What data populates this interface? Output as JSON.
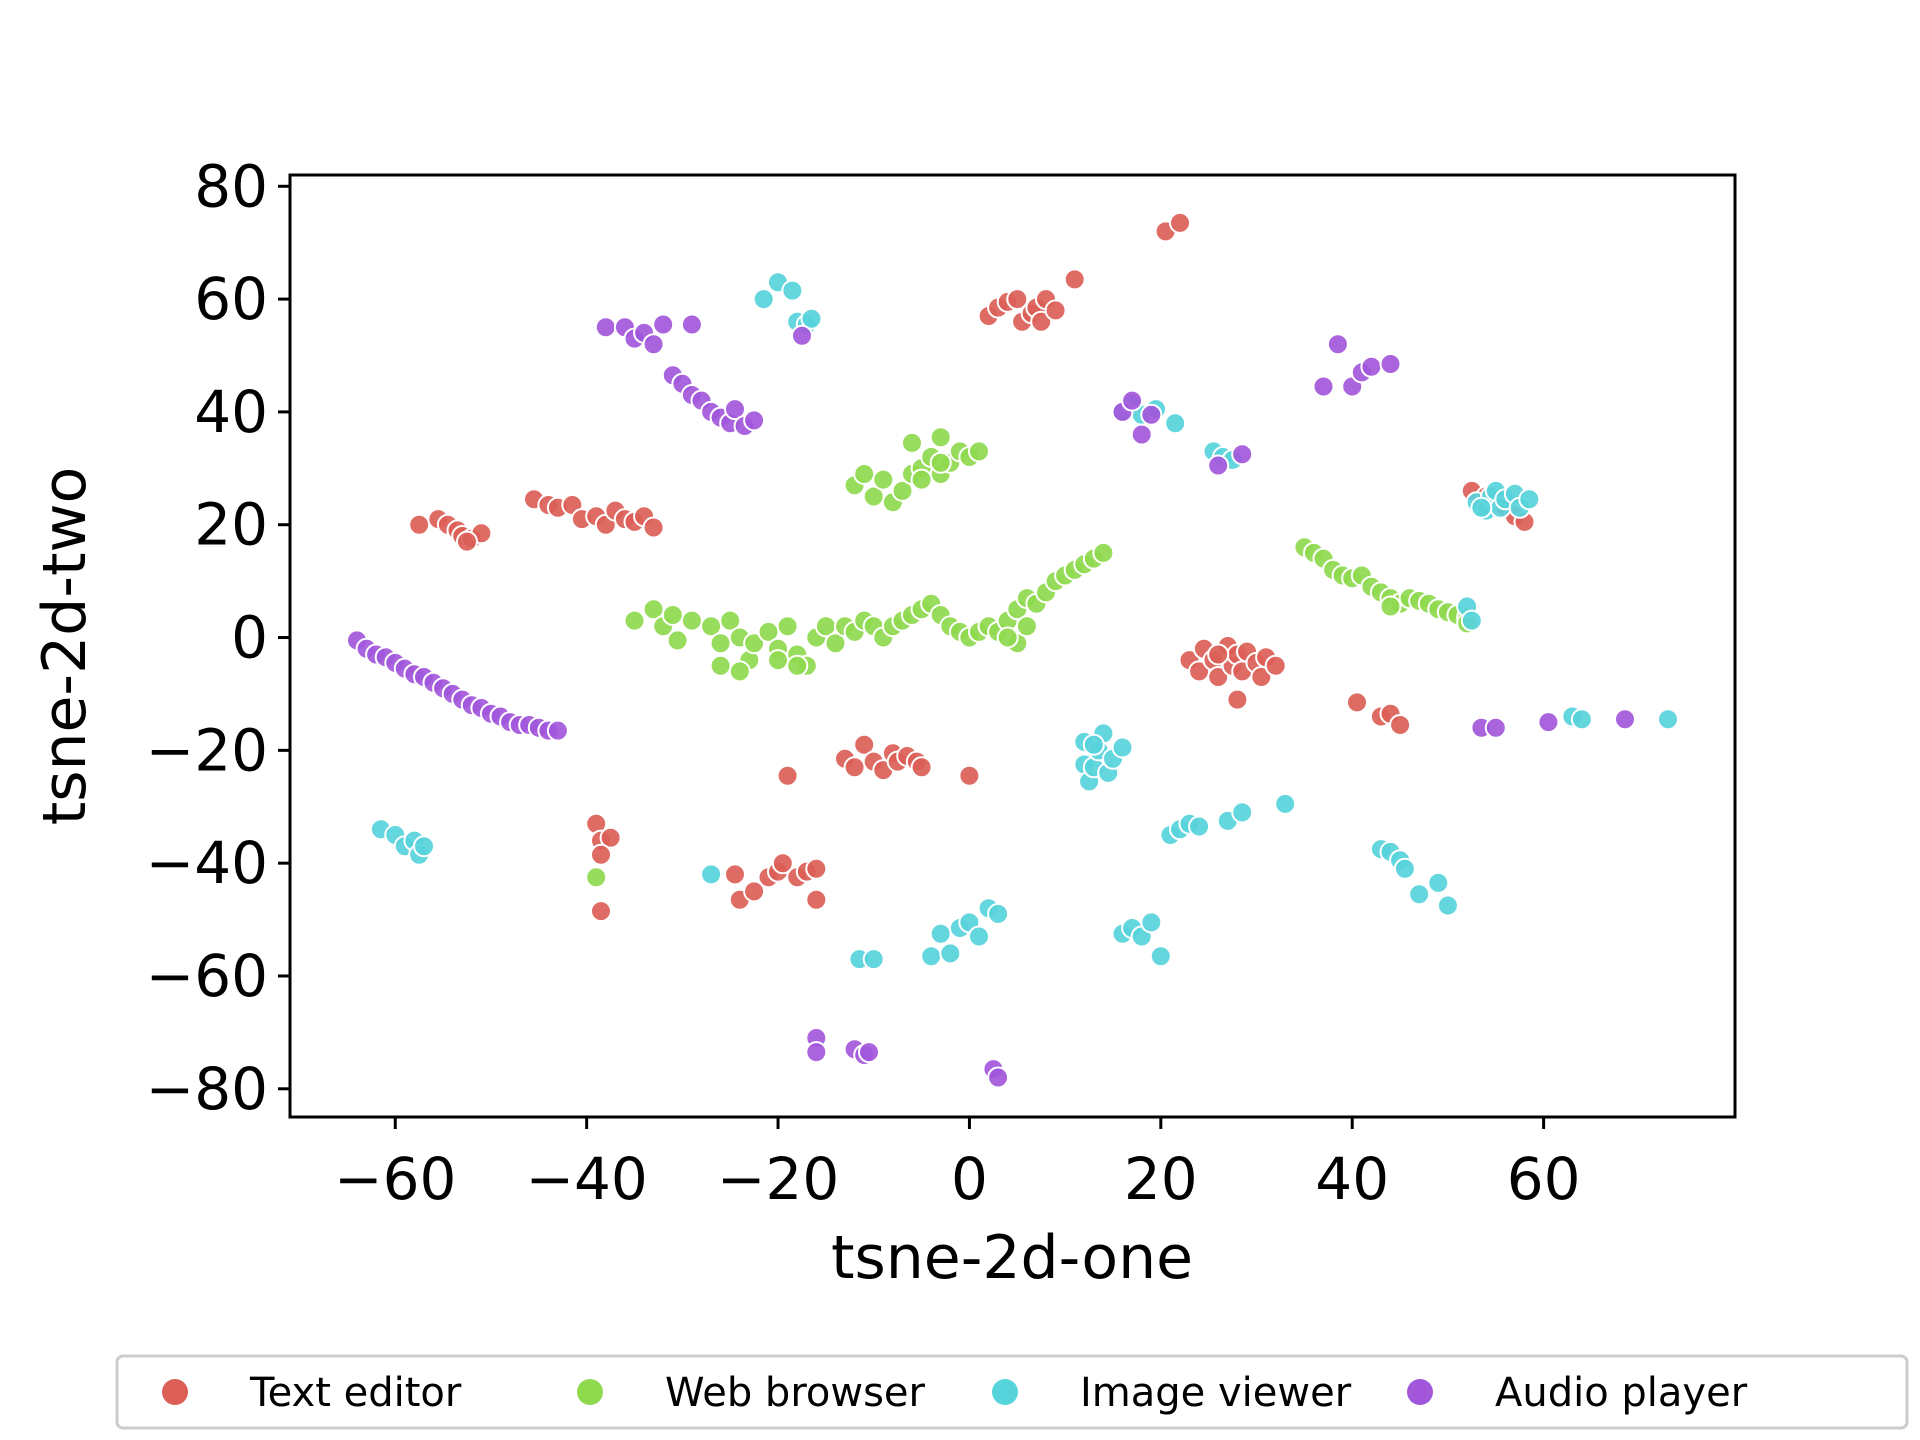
{
  "chart_data": {
    "type": "scatter",
    "title": "",
    "xlabel": "tsne-2d-one",
    "ylabel": "tsne-2d-two",
    "xlim": [
      -71,
      80
    ],
    "ylim": [
      -85,
      82
    ],
    "xticks": [
      -60,
      -40,
      -20,
      0,
      20,
      40,
      60
    ],
    "yticks": [
      80,
      60,
      40,
      20,
      0,
      -20,
      -40,
      -60,
      -80
    ],
    "xtick_labels": [
      "−60",
      "−40",
      "−20",
      "0",
      "20",
      "40",
      "60"
    ],
    "ytick_labels": [
      "80",
      "60",
      "40",
      "20",
      "0",
      "−20",
      "−40",
      "−60",
      "−80"
    ],
    "grid": false,
    "legend_position": "bottom",
    "series": [
      {
        "name": "Text editor",
        "color": "#db5f57",
        "points": [
          [
            -57.5,
            20
          ],
          [
            -55.5,
            21
          ],
          [
            -54.5,
            20
          ],
          [
            -53.5,
            19
          ],
          [
            -53,
            18
          ],
          [
            -52,
            17.5
          ],
          [
            -51,
            18.5
          ],
          [
            -52.5,
            17
          ],
          [
            -45.5,
            24.5
          ],
          [
            -44,
            23.5
          ],
          [
            -43,
            23
          ],
          [
            -41.5,
            23.5
          ],
          [
            -40.5,
            21
          ],
          [
            -39,
            21.5
          ],
          [
            -38,
            20
          ],
          [
            -37,
            22.5
          ],
          [
            -36,
            21
          ],
          [
            -35,
            20.5
          ],
          [
            -34,
            21.5
          ],
          [
            -33,
            19.5
          ],
          [
            -39,
            -33
          ],
          [
            -38.5,
            -36
          ],
          [
            -37.5,
            -35.5
          ],
          [
            -38.5,
            -38.5
          ],
          [
            -38.5,
            -48.5
          ],
          [
            -24.5,
            -42
          ],
          [
            -24,
            -46.5
          ],
          [
            -22.5,
            -45
          ],
          [
            -21,
            -42.5
          ],
          [
            -20,
            -41.5
          ],
          [
            -19.5,
            -40
          ],
          [
            -18,
            -42.5
          ],
          [
            -17,
            -41.5
          ],
          [
            -16,
            -41
          ],
          [
            -16,
            -46.5
          ],
          [
            -19,
            -24.5
          ],
          [
            0,
            -24.5
          ],
          [
            -13,
            -21.5
          ],
          [
            -12,
            -23
          ],
          [
            -11,
            -19
          ],
          [
            -10,
            -22
          ],
          [
            -9,
            -23.5
          ],
          [
            -8,
            -20.5
          ],
          [
            -7.5,
            -22
          ],
          [
            -6.5,
            -21
          ],
          [
            -5.5,
            -22
          ],
          [
            -5,
            -23
          ],
          [
            2,
            57
          ],
          [
            3,
            58.5
          ],
          [
            4,
            59.5
          ],
          [
            5,
            60
          ],
          [
            5.5,
            56
          ],
          [
            6.5,
            57.5
          ],
          [
            7,
            58.5
          ],
          [
            7.5,
            56
          ],
          [
            8,
            60
          ],
          [
            9,
            58
          ],
          [
            11,
            63.5
          ],
          [
            20.5,
            72
          ],
          [
            22,
            73.5
          ],
          [
            23,
            -4
          ],
          [
            24,
            -6
          ],
          [
            24.5,
            -2
          ],
          [
            25.5,
            -4
          ],
          [
            26,
            -7
          ],
          [
            27,
            -1.5
          ],
          [
            27.5,
            -5
          ],
          [
            28,
            -3
          ],
          [
            28.5,
            -6
          ],
          [
            29,
            -2.5
          ],
          [
            30,
            -4.5
          ],
          [
            30.5,
            -7
          ],
          [
            31,
            -3.5
          ],
          [
            32,
            -5
          ],
          [
            28,
            -11
          ],
          [
            26,
            -3
          ],
          [
            40.5,
            -11.5
          ],
          [
            43,
            -14
          ],
          [
            44,
            -13.5
          ],
          [
            45,
            -15.5
          ],
          [
            52.5,
            26
          ],
          [
            54,
            25
          ],
          [
            56,
            23
          ],
          [
            57,
            21.5
          ],
          [
            58,
            20.5
          ]
        ]
      },
      {
        "name": "Web browser",
        "color": "#8fd94f",
        "points": [
          [
            -35,
            3
          ],
          [
            -33,
            5
          ],
          [
            -32,
            2
          ],
          [
            -31,
            4
          ],
          [
            -30.5,
            -0.5
          ],
          [
            -29,
            3
          ],
          [
            -27,
            2
          ],
          [
            -26,
            -1
          ],
          [
            -25,
            3
          ],
          [
            -24,
            0
          ],
          [
            -23,
            -4
          ],
          [
            -22.5,
            -1
          ],
          [
            -21,
            1
          ],
          [
            -20,
            -2
          ],
          [
            -19,
            2
          ],
          [
            -18,
            -3
          ],
          [
            -17,
            -5
          ],
          [
            -16,
            0
          ],
          [
            -15,
            2
          ],
          [
            -14,
            -1
          ],
          [
            -13,
            2
          ],
          [
            -12,
            1
          ],
          [
            -11,
            3
          ],
          [
            -10,
            2
          ],
          [
            -9,
            0
          ],
          [
            -8,
            2
          ],
          [
            -7,
            3
          ],
          [
            -6,
            4
          ],
          [
            -5,
            5
          ],
          [
            -4,
            6
          ],
          [
            -3,
            4
          ],
          [
            -2,
            2
          ],
          [
            -1,
            1
          ],
          [
            0,
            0
          ],
          [
            1,
            1
          ],
          [
            2,
            2
          ],
          [
            3,
            1
          ],
          [
            4,
            3
          ],
          [
            5,
            5
          ],
          [
            6,
            7
          ],
          [
            7,
            6
          ],
          [
            8,
            8
          ],
          [
            9,
            10
          ],
          [
            10,
            11
          ],
          [
            11,
            12
          ],
          [
            12,
            13
          ],
          [
            13,
            14
          ],
          [
            14,
            15
          ],
          [
            -24,
            -6
          ],
          [
            -26,
            -5
          ],
          [
            -20,
            -4
          ],
          [
            -18,
            -5
          ],
          [
            5,
            -1
          ],
          [
            6,
            2
          ],
          [
            4,
            0
          ],
          [
            -12,
            27
          ],
          [
            -11,
            29
          ],
          [
            -10,
            25
          ],
          [
            -9,
            28
          ],
          [
            -8,
            24
          ],
          [
            -7,
            26
          ],
          [
            -6,
            29
          ],
          [
            -5,
            30
          ],
          [
            -4,
            32
          ],
          [
            -3,
            29
          ],
          [
            -2,
            31
          ],
          [
            -1,
            33
          ],
          [
            0,
            32
          ],
          [
            1,
            33
          ],
          [
            -6,
            34.5
          ],
          [
            -3,
            35.5
          ],
          [
            -5,
            28
          ],
          [
            -3,
            31
          ],
          [
            35,
            16
          ],
          [
            36,
            15
          ],
          [
            37,
            14
          ],
          [
            38,
            12
          ],
          [
            39,
            11
          ],
          [
            40,
            10.5
          ],
          [
            41,
            11
          ],
          [
            42,
            9
          ],
          [
            43,
            8
          ],
          [
            44,
            7
          ],
          [
            45,
            6
          ],
          [
            46,
            7
          ],
          [
            47,
            6.5
          ],
          [
            48,
            6
          ],
          [
            49,
            5
          ],
          [
            50,
            4.5
          ],
          [
            51,
            4
          ],
          [
            52,
            3.5
          ],
          [
            52,
            2.5
          ],
          [
            44,
            5.5
          ],
          [
            -39,
            -42.5
          ]
        ]
      },
      {
        "name": "Image viewer",
        "color": "#57d3db",
        "points": [
          [
            -21.5,
            60
          ],
          [
            -20,
            63
          ],
          [
            -18.5,
            61.5
          ],
          [
            -18,
            56
          ],
          [
            -17,
            55.5
          ],
          [
            -16.5,
            56.5
          ],
          [
            16,
            40
          ],
          [
            17,
            41.5
          ],
          [
            18,
            39.5
          ],
          [
            19.5,
            40.5
          ],
          [
            21.5,
            38
          ],
          [
            25.5,
            33
          ],
          [
            26.5,
            32
          ],
          [
            27.5,
            31.5
          ],
          [
            53,
            24
          ],
          [
            54,
            22.5
          ],
          [
            54.5,
            25
          ],
          [
            55,
            26
          ],
          [
            55.5,
            23
          ],
          [
            56,
            24.5
          ],
          [
            57,
            25.5
          ],
          [
            57.5,
            23
          ],
          [
            58.5,
            24.5
          ],
          [
            53.5,
            23
          ],
          [
            52,
            5.5
          ],
          [
            52.5,
            3
          ],
          [
            12,
            -18.5
          ],
          [
            12,
            -22.5
          ],
          [
            12.5,
            -25.5
          ],
          [
            13,
            -23
          ],
          [
            13.5,
            -20
          ],
          [
            14,
            -17
          ],
          [
            14.5,
            -24
          ],
          [
            15,
            -21.5
          ],
          [
            16,
            -19.5
          ],
          [
            13,
            -19
          ],
          [
            -61.5,
            -34
          ],
          [
            -60,
            -35
          ],
          [
            -59,
            -37
          ],
          [
            -58,
            -36
          ],
          [
            -57.5,
            -38.5
          ],
          [
            -57,
            -37
          ],
          [
            -27,
            -42
          ],
          [
            -11.5,
            -57
          ],
          [
            -10,
            -57
          ],
          [
            -4,
            -56.5
          ],
          [
            -3,
            -52.5
          ],
          [
            -2,
            -56
          ],
          [
            -1,
            -51.5
          ],
          [
            0,
            -50.5
          ],
          [
            1,
            -53
          ],
          [
            2,
            -48
          ],
          [
            3,
            -49
          ],
          [
            16,
            -52.5
          ],
          [
            17,
            -51.5
          ],
          [
            18,
            -53
          ],
          [
            19,
            -50.5
          ],
          [
            20,
            -56.5
          ],
          [
            21,
            -35
          ],
          [
            22,
            -34
          ],
          [
            23,
            -33
          ],
          [
            24,
            -33.5
          ],
          [
            27,
            -32.5
          ],
          [
            28.5,
            -31
          ],
          [
            33,
            -29.5
          ],
          [
            43,
            -37.5
          ],
          [
            44,
            -38
          ],
          [
            45,
            -39.5
          ],
          [
            45.5,
            -41
          ],
          [
            47,
            -45.5
          ],
          [
            49,
            -43.5
          ],
          [
            50,
            -47.5
          ],
          [
            63,
            -14
          ],
          [
            64,
            -14.5
          ],
          [
            73,
            -14.5
          ]
        ]
      },
      {
        "name": "Audio player",
        "color": "#a257db",
        "points": [
          [
            -64,
            -0.5
          ],
          [
            -63,
            -2
          ],
          [
            -62,
            -3
          ],
          [
            -61,
            -3.5
          ],
          [
            -60,
            -4.5
          ],
          [
            -59,
            -5.5
          ],
          [
            -58,
            -6.5
          ],
          [
            -57,
            -7
          ],
          [
            -56,
            -8
          ],
          [
            -55,
            -9
          ],
          [
            -54,
            -10
          ],
          [
            -53,
            -11
          ],
          [
            -52,
            -12
          ],
          [
            -51,
            -12.5
          ],
          [
            -50,
            -13.5
          ],
          [
            -49,
            -14
          ],
          [
            -48,
            -15
          ],
          [
            -47,
            -15.5
          ],
          [
            -46,
            -15.5
          ],
          [
            -45,
            -16
          ],
          [
            -44,
            -16.5
          ],
          [
            -43,
            -16.5
          ],
          [
            -38,
            55
          ],
          [
            -36,
            55
          ],
          [
            -35,
            53
          ],
          [
            -34,
            54
          ],
          [
            -33,
            52
          ],
          [
            -32,
            55.5
          ],
          [
            -29,
            55.5
          ],
          [
            -31,
            46.5
          ],
          [
            -30,
            45
          ],
          [
            -29,
            43
          ],
          [
            -28,
            42
          ],
          [
            -27,
            40
          ],
          [
            -26,
            39
          ],
          [
            -25,
            38
          ],
          [
            -24.5,
            40.5
          ],
          [
            -23.5,
            37.5
          ],
          [
            -22.5,
            38.5
          ],
          [
            -17.5,
            53.5
          ],
          [
            16,
            40
          ],
          [
            17,
            42
          ],
          [
            18,
            36
          ],
          [
            19,
            39.5
          ],
          [
            26,
            30.5
          ],
          [
            28.5,
            32.5
          ],
          [
            37,
            44.5
          ],
          [
            38.5,
            52
          ],
          [
            40,
            44.5
          ],
          [
            41,
            47
          ],
          [
            42,
            48
          ],
          [
            44,
            48.5
          ],
          [
            53.5,
            -16
          ],
          [
            55,
            -16
          ],
          [
            60.5,
            -15
          ],
          [
            68.5,
            -14.5
          ],
          [
            -16,
            -71
          ],
          [
            -16,
            -73.5
          ],
          [
            -12,
            -73
          ],
          [
            -11,
            -74
          ],
          [
            -10.5,
            -73.5
          ],
          [
            2.5,
            -76.5
          ],
          [
            3,
            -78
          ]
        ]
      }
    ]
  }
}
